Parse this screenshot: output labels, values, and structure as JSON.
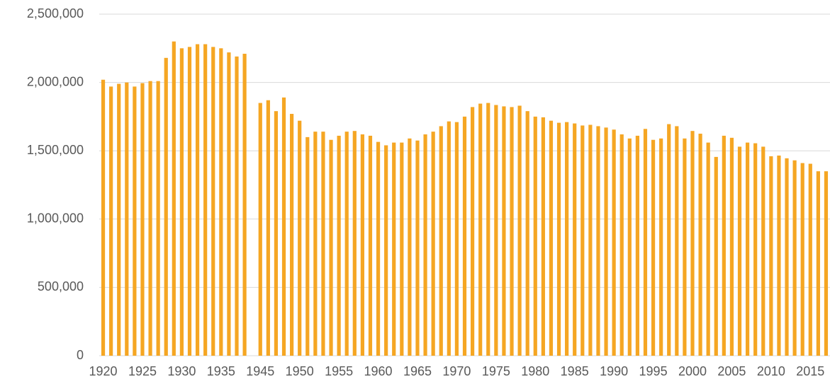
{
  "chart_data": {
    "type": "bar",
    "categories": [
      "1920",
      null,
      null,
      null,
      null,
      "1925",
      null,
      null,
      null,
      null,
      "1930",
      null,
      null,
      null,
      null,
      "1935",
      null,
      null,
      null,
      null,
      "1945",
      null,
      null,
      null,
      null,
      "1950",
      null,
      null,
      null,
      null,
      "1955",
      null,
      null,
      null,
      null,
      "1960",
      null,
      null,
      null,
      null,
      "1965",
      null,
      null,
      null,
      null,
      "1970",
      null,
      null,
      null,
      null,
      "1975",
      null,
      null,
      null,
      null,
      "1980",
      null,
      null,
      null,
      null,
      "1985",
      null,
      null,
      null,
      null,
      "1990",
      null,
      null,
      null,
      null,
      "1995",
      null,
      null,
      null,
      null,
      "2000",
      null,
      null,
      null,
      null,
      "2005",
      null,
      null,
      null,
      null,
      "2010",
      null,
      null,
      null,
      null,
      "2015",
      null,
      null
    ],
    "values": [
      2020000,
      1970000,
      1990000,
      2000000,
      1970000,
      1995000,
      2010000,
      2010000,
      2180000,
      2300000,
      2250000,
      2260000,
      2280000,
      2280000,
      2260000,
      2250000,
      2220000,
      2190000,
      2210000,
      null,
      1850000,
      1870000,
      1790000,
      1890000,
      1770000,
      1720000,
      1600000,
      1640000,
      1640000,
      1580000,
      1610000,
      1640000,
      1645000,
      1620000,
      1610000,
      1565000,
      1540000,
      1560000,
      1560000,
      1590000,
      1575000,
      1620000,
      1640000,
      1680000,
      1715000,
      1710000,
      1750000,
      1820000,
      1845000,
      1850000,
      1835000,
      1825000,
      1820000,
      1830000,
      1790000,
      1750000,
      1745000,
      1720000,
      1705000,
      1710000,
      1700000,
      1685000,
      1690000,
      1680000,
      1670000,
      1655000,
      1620000,
      1590000,
      1610000,
      1660000,
      1580000,
      1590000,
      1695000,
      1680000,
      1590000,
      1645000,
      1625000,
      1560000,
      1455000,
      1610000,
      1595000,
      1530000,
      1560000,
      1555000,
      1530000,
      1460000,
      1465000,
      1445000,
      1430000,
      1410000,
      1405000,
      1350000,
      1350000
    ],
    "color": "#f5a623",
    "ylim": [
      0,
      2500000
    ],
    "yticks": [
      0,
      {
        "value": 500000,
        "label": "500,000"
      },
      {
        "value": 1000000,
        "label": "1,000,000"
      },
      {
        "value": 1500000,
        "label": "1,500,000"
      },
      {
        "value": 2000000,
        "label": "2,000,000"
      },
      {
        "value": 2500000,
        "label": "2,500,000"
      }
    ],
    "grid": true
  }
}
